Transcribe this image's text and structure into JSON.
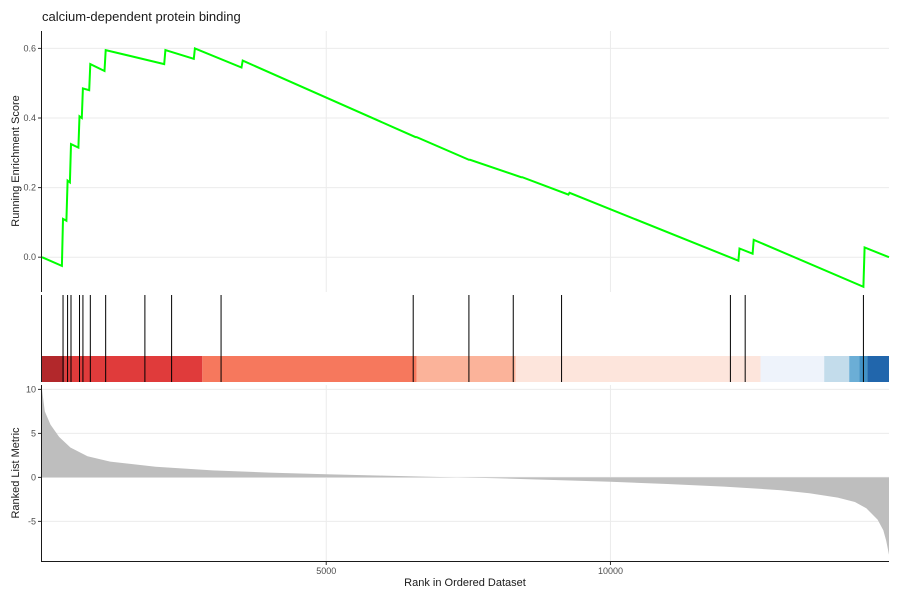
{
  "chart_data": {
    "type": "line",
    "title": "calcium-dependent protein binding",
    "xlabel": "Rank in Ordered Dataset",
    "x_ticks": [
      5000,
      10000
    ],
    "xlim": [
      0,
      14900
    ],
    "colors": {
      "es_line": "#00ff00",
      "metric_fill": "#bebebe",
      "hit_line": "#000000"
    },
    "es_panel": {
      "ylabel": "Running Enrichment Score",
      "ylim": [
        -0.1,
        0.65
      ],
      "y_ticks": [
        0.0,
        0.2,
        0.4,
        0.6
      ],
      "y_tick_labels": [
        "0.0",
        "0.2",
        "0.4",
        "0.6"
      ],
      "series": [
        {
          "x": [
            0,
            350,
            370,
            430,
            450,
            490,
            510,
            640,
            660,
            700,
            720,
            830,
            850,
            1100,
            1120,
            2150,
            2170,
            2670,
            2690,
            3510,
            3530,
            6570,
            6590,
            7510,
            7530,
            8430,
            8450,
            9260,
            9280,
            12250,
            12270,
            12500,
            12520,
            14450,
            14470,
            14900
          ],
          "y": [
            0.0,
            -0.025,
            0.11,
            0.105,
            0.22,
            0.215,
            0.325,
            0.315,
            0.405,
            0.4,
            0.485,
            0.48,
            0.555,
            0.535,
            0.595,
            0.555,
            0.595,
            0.57,
            0.6,
            0.545,
            0.565,
            0.345,
            0.345,
            0.28,
            0.28,
            0.23,
            0.23,
            0.18,
            0.185,
            -0.01,
            0.025,
            0.01,
            0.05,
            -0.085,
            0.028,
            0.0
          ]
        }
      ]
    },
    "hits": [
      370,
      450,
      510,
      660,
      720,
      850,
      1120,
      1810,
      2280,
      3150,
      6530,
      7510,
      8290,
      9140,
      12110,
      12370,
      14450
    ],
    "rank_bands": [
      {
        "from": 0,
        "to": 400,
        "color": "#b2282b"
      },
      {
        "from": 400,
        "to": 2820,
        "color": "#e03b3b"
      },
      {
        "from": 2820,
        "to": 6590,
        "color": "#f6785d"
      },
      {
        "from": 6590,
        "to": 8330,
        "color": "#fbb39a"
      },
      {
        "from": 8330,
        "to": 12640,
        "color": "#fde5dc"
      },
      {
        "from": 12640,
        "to": 13760,
        "color": "#eef3fb"
      },
      {
        "from": 13760,
        "to": 14200,
        "color": "#c3dceb"
      },
      {
        "from": 14200,
        "to": 14380,
        "color": "#6baed6"
      },
      {
        "from": 14380,
        "to": 14520,
        "color": "#4292c6"
      },
      {
        "from": 14520,
        "to": 14900,
        "color": "#2166ac"
      }
    ],
    "metric_panel": {
      "ylabel": "Ranked List Metric",
      "ylim": [
        -9.5,
        10.5
      ],
      "y_ticks": [
        -5,
        0,
        5,
        10
      ],
      "y_tick_labels": [
        "-5",
        "0",
        "5",
        "10"
      ],
      "x": [
        0,
        50,
        150,
        300,
        500,
        800,
        1200,
        2000,
        3000,
        4000,
        5000,
        6000,
        7000,
        8000,
        9000,
        10000,
        11000,
        12000,
        13000,
        13500,
        14000,
        14300,
        14500,
        14700,
        14800,
        14850,
        14900
      ],
      "y": [
        10,
        7.5,
        6.0,
        4.6,
        3.4,
        2.4,
        1.8,
        1.2,
        0.8,
        0.55,
        0.35,
        0.2,
        0.05,
        -0.1,
        -0.3,
        -0.5,
        -0.75,
        -1.05,
        -1.45,
        -1.8,
        -2.3,
        -2.8,
        -3.5,
        -4.8,
        -6.0,
        -7.2,
        -8.8
      ]
    }
  }
}
